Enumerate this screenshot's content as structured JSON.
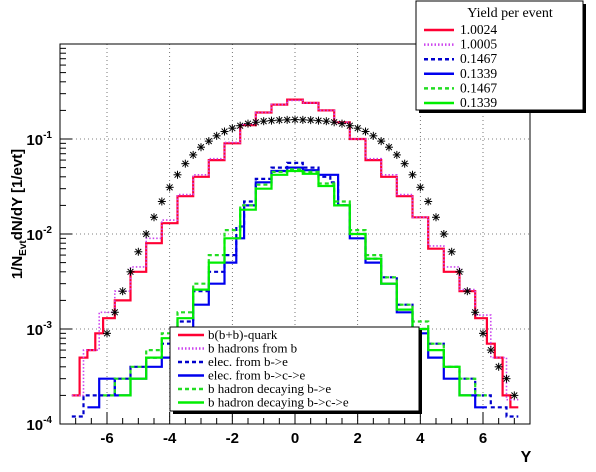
{
  "chart_data": {
    "type": "line",
    "title": "",
    "xlabel": "Y",
    "ylabel": "1/N",
    "ylabel_sub": "Evt",
    "ylabel_rest": "dN/dY [1/evt]",
    "xlim": [
      -7.5,
      7.5
    ],
    "ylim": [
      0.0001,
      1
    ],
    "yscale": "log",
    "grid": true,
    "x_ticks": [
      -6,
      -4,
      -2,
      0,
      2,
      4,
      6
    ],
    "x_tick_labels": [
      "-6",
      "-4",
      "-2",
      "0",
      "2",
      "4",
      "6"
    ],
    "y_ticks": [
      0.0001,
      0.001,
      0.01,
      0.1
    ],
    "y_tick_labels": [
      {
        "base": "10",
        "exp": "-4"
      },
      {
        "base": "10",
        "exp": "-3"
      },
      {
        "base": "10",
        "exp": "-2"
      },
      {
        "base": "10",
        "exp": "-1"
      }
    ],
    "yield_legend": {
      "header": "Yield per event",
      "entries": [
        {
          "label": "1.0024",
          "color": "#ff0033",
          "dash": "solid"
        },
        {
          "label": "1.0005",
          "color": "#cc44ee",
          "dash": "dot"
        },
        {
          "label": "0.1467",
          "color": "#0000cc",
          "dash": "dash"
        },
        {
          "label": "0.1339",
          "color": "#0000ee",
          "dash": "solid"
        },
        {
          "label": "0.1467",
          "color": "#22dd22",
          "dash": "dash"
        },
        {
          "label": "0.1339",
          "color": "#00ee00",
          "dash": "solid"
        }
      ]
    },
    "series_legend": {
      "entries": [
        {
          "label": "b(b+b)-quark",
          "color": "#ff0033",
          "dash": "solid"
        },
        {
          "label": "b hadrons from b",
          "color": "#cc44ee",
          "dash": "dot"
        },
        {
          "label": "elec. from b->e",
          "color": "#0000cc",
          "dash": "dash"
        },
        {
          "label": "elec. from b->c->e",
          "color": "#0000ee",
          "dash": "solid"
        },
        {
          "label": "b hadron decaying b->e",
          "color": "#22dd22",
          "dash": "dash"
        },
        {
          "label": "b hadron decaying b->c->e",
          "color": "#00ee00",
          "dash": "solid"
        }
      ]
    },
    "series": [
      {
        "color": "#ff0033",
        "dash": "solid",
        "width": 2.2,
        "points": [
          [
            -7.0,
            0.0002
          ],
          [
            -6.75,
            0.0005
          ],
          [
            -6.5,
            0.0006
          ],
          [
            -6.25,
            0.0009
          ],
          [
            -6.0,
            0.0013
          ],
          [
            -5.5,
            0.002
          ],
          [
            -5.0,
            0.004
          ],
          [
            -4.5,
            0.008
          ],
          [
            -4.0,
            0.013
          ],
          [
            -3.5,
            0.025
          ],
          [
            -3.0,
            0.04
          ],
          [
            -2.5,
            0.06
          ],
          [
            -2.0,
            0.09
          ],
          [
            -1.5,
            0.14
          ],
          [
            -1.0,
            0.19
          ],
          [
            -0.5,
            0.23
          ],
          [
            0.0,
            0.26
          ],
          [
            0.5,
            0.24
          ],
          [
            1.0,
            0.2
          ],
          [
            1.5,
            0.15
          ],
          [
            2.0,
            0.1
          ],
          [
            2.5,
            0.06
          ],
          [
            3.0,
            0.04
          ],
          [
            3.5,
            0.025
          ],
          [
            4.0,
            0.015
          ],
          [
            4.5,
            0.007
          ],
          [
            5.0,
            0.004
          ],
          [
            5.5,
            0.0025
          ],
          [
            6.0,
            0.0013
          ],
          [
            6.25,
            0.0007
          ],
          [
            6.5,
            0.0005
          ],
          [
            6.75,
            0.0002
          ],
          [
            7.0,
            0.00015
          ]
        ]
      },
      {
        "color": "#cc44ee",
        "dash": "dot",
        "width": 1.6,
        "points": [
          [
            -7.0,
            0.0002
          ],
          [
            -6.5,
            0.0006
          ],
          [
            -6.0,
            0.0015
          ],
          [
            -5.5,
            0.0025
          ],
          [
            -5.0,
            0.0045
          ],
          [
            -4.5,
            0.009
          ],
          [
            -4.0,
            0.014
          ],
          [
            -3.5,
            0.026
          ],
          [
            -3.0,
            0.042
          ],
          [
            -2.5,
            0.062
          ],
          [
            -2.0,
            0.092
          ],
          [
            -1.5,
            0.142
          ],
          [
            -1.0,
            0.19
          ],
          [
            -0.5,
            0.23
          ],
          [
            0.0,
            0.255
          ],
          [
            0.5,
            0.24
          ],
          [
            1.0,
            0.2
          ],
          [
            1.5,
            0.15
          ],
          [
            2.0,
            0.1
          ],
          [
            2.5,
            0.062
          ],
          [
            3.0,
            0.042
          ],
          [
            3.5,
            0.026
          ],
          [
            4.0,
            0.015
          ],
          [
            4.5,
            0.0075
          ],
          [
            5.0,
            0.0045
          ],
          [
            5.5,
            0.0026
          ],
          [
            6.0,
            0.0014
          ],
          [
            6.5,
            0.0005
          ],
          [
            7.0,
            0.00018
          ]
        ]
      },
      {
        "color": "#0000cc",
        "dash": "dash",
        "width": 2.2,
        "points": [
          [
            -7.0,
            0.00012
          ],
          [
            -6.5,
            0.0002
          ],
          [
            -6.0,
            0.0002
          ],
          [
            -5.5,
            0.0003
          ],
          [
            -5.0,
            0.0004
          ],
          [
            -4.5,
            0.0005
          ],
          [
            -4.0,
            0.0007
          ],
          [
            -3.5,
            0.0012
          ],
          [
            -3.0,
            0.0025
          ],
          [
            -2.5,
            0.004
          ],
          [
            -2.0,
            0.006
          ],
          [
            -1.75,
            0.012
          ],
          [
            -1.5,
            0.022
          ],
          [
            -1.0,
            0.038
          ],
          [
            -0.5,
            0.05
          ],
          [
            0.0,
            0.056
          ],
          [
            0.5,
            0.05
          ],
          [
            1.0,
            0.04
          ],
          [
            1.25,
            0.035
          ],
          [
            1.5,
            0.02
          ],
          [
            2.0,
            0.01
          ],
          [
            2.5,
            0.0055
          ],
          [
            3.0,
            0.0035
          ],
          [
            3.5,
            0.0018
          ],
          [
            4.0,
            0.001
          ],
          [
            4.5,
            0.0007
          ],
          [
            5.0,
            0.0004
          ],
          [
            5.5,
            0.0003
          ],
          [
            6.0,
            0.0002
          ],
          [
            6.5,
            0.00015
          ],
          [
            7.0,
            0.00012
          ]
        ]
      },
      {
        "color": "#0000ee",
        "dash": "solid",
        "width": 2.2,
        "points": [
          [
            -6.5,
            0.00015
          ],
          [
            -6.0,
            0.0003
          ],
          [
            -5.5,
            0.0002
          ],
          [
            -5.0,
            0.0003
          ],
          [
            -4.5,
            0.0004
          ],
          [
            -4.0,
            0.0005
          ],
          [
            -3.5,
            0.0008
          ],
          [
            -3.0,
            0.0018
          ],
          [
            -2.5,
            0.003
          ],
          [
            -2.0,
            0.005
          ],
          [
            -1.75,
            0.009
          ],
          [
            -1.5,
            0.02
          ],
          [
            -1.0,
            0.035
          ],
          [
            -0.5,
            0.046
          ],
          [
            0.0,
            0.05
          ],
          [
            0.5,
            0.047
          ],
          [
            1.0,
            0.042
          ],
          [
            1.25,
            0.042
          ],
          [
            1.5,
            0.02
          ],
          [
            2.0,
            0.009
          ],
          [
            2.5,
            0.005
          ],
          [
            3.0,
            0.003
          ],
          [
            3.5,
            0.0015
          ],
          [
            4.0,
            0.0009
          ],
          [
            4.5,
            0.0005
          ],
          [
            5.0,
            0.0003
          ],
          [
            5.5,
            0.0002
          ],
          [
            6.0,
            0.00015
          ]
        ]
      },
      {
        "color": "#22dd22",
        "dash": "dash",
        "width": 2.2,
        "points": [
          [
            -6.0,
            0.0002
          ],
          [
            -5.5,
            0.0003
          ],
          [
            -5.0,
            0.0004
          ],
          [
            -4.5,
            0.0006
          ],
          [
            -4.0,
            0.0009
          ],
          [
            -3.5,
            0.0015
          ],
          [
            -3.0,
            0.003
          ],
          [
            -2.5,
            0.006
          ],
          [
            -2.0,
            0.011
          ],
          [
            -1.5,
            0.02
          ],
          [
            -1.0,
            0.033
          ],
          [
            -0.5,
            0.045
          ],
          [
            0.0,
            0.048
          ],
          [
            0.5,
            0.045
          ],
          [
            1.0,
            0.034
          ],
          [
            1.5,
            0.022
          ],
          [
            2.0,
            0.011
          ],
          [
            2.5,
            0.006
          ],
          [
            3.0,
            0.0035
          ],
          [
            3.5,
            0.0018
          ],
          [
            4.0,
            0.0012
          ],
          [
            4.5,
            0.0007
          ],
          [
            5.0,
            0.0004
          ],
          [
            5.5,
            0.0003
          ],
          [
            6.0,
            0.0002
          ]
        ]
      },
      {
        "color": "#00ee00",
        "dash": "solid",
        "width": 2.2,
        "points": [
          [
            -5.5,
            0.0002
          ],
          [
            -5.0,
            0.0003
          ],
          [
            -4.5,
            0.0005
          ],
          [
            -4.0,
            0.0008
          ],
          [
            -3.5,
            0.0013
          ],
          [
            -3.0,
            0.0026
          ],
          [
            -2.5,
            0.005
          ],
          [
            -2.0,
            0.009
          ],
          [
            -1.5,
            0.018
          ],
          [
            -1.0,
            0.03
          ],
          [
            -0.5,
            0.042
          ],
          [
            0.0,
            0.046
          ],
          [
            0.5,
            0.043
          ],
          [
            1.0,
            0.032
          ],
          [
            1.5,
            0.02
          ],
          [
            2.0,
            0.01
          ],
          [
            2.5,
            0.0055
          ],
          [
            3.0,
            0.003
          ],
          [
            3.5,
            0.0016
          ],
          [
            4.0,
            0.001
          ],
          [
            4.5,
            0.0006
          ],
          [
            5.0,
            0.0004
          ],
          [
            5.5,
            0.0002
          ]
        ]
      }
    ],
    "markers": {
      "symbol": "*",
      "color": "#000000",
      "points": [
        [
          -6.0,
          0.0009
        ],
        [
          -5.75,
          0.0015
        ],
        [
          -5.5,
          0.0025
        ],
        [
          -5.25,
          0.004
        ],
        [
          -5.0,
          0.0065
        ],
        [
          -4.75,
          0.01
        ],
        [
          -4.5,
          0.015
        ],
        [
          -4.25,
          0.022
        ],
        [
          -4.0,
          0.031
        ],
        [
          -3.75,
          0.042
        ],
        [
          -3.5,
          0.055
        ],
        [
          -3.25,
          0.068
        ],
        [
          -3.0,
          0.082
        ],
        [
          -2.75,
          0.095
        ],
        [
          -2.5,
          0.108
        ],
        [
          -2.25,
          0.12
        ],
        [
          -2.0,
          0.13
        ],
        [
          -1.75,
          0.138
        ],
        [
          -1.5,
          0.145
        ],
        [
          -1.25,
          0.15
        ],
        [
          -1.0,
          0.154
        ],
        [
          -0.75,
          0.156
        ],
        [
          -0.5,
          0.158
        ],
        [
          -0.25,
          0.159
        ],
        [
          0.0,
          0.16
        ],
        [
          0.25,
          0.159
        ],
        [
          0.5,
          0.158
        ],
        [
          0.75,
          0.156
        ],
        [
          1.0,
          0.154
        ],
        [
          1.25,
          0.15
        ],
        [
          1.5,
          0.145
        ],
        [
          1.75,
          0.138
        ],
        [
          2.0,
          0.13
        ],
        [
          2.25,
          0.12
        ],
        [
          2.5,
          0.108
        ],
        [
          2.75,
          0.095
        ],
        [
          3.0,
          0.082
        ],
        [
          3.25,
          0.068
        ],
        [
          3.5,
          0.055
        ],
        [
          3.75,
          0.042
        ],
        [
          4.0,
          0.031
        ],
        [
          4.25,
          0.022
        ],
        [
          4.5,
          0.015
        ],
        [
          4.75,
          0.01
        ],
        [
          5.0,
          0.0065
        ],
        [
          5.25,
          0.004
        ],
        [
          5.5,
          0.0025
        ],
        [
          5.75,
          0.0015
        ],
        [
          6.0,
          0.0009
        ],
        [
          6.25,
          0.0006
        ],
        [
          6.5,
          0.0004
        ],
        [
          6.75,
          0.0003
        ],
        [
          7.0,
          0.0002
        ]
      ]
    }
  }
}
